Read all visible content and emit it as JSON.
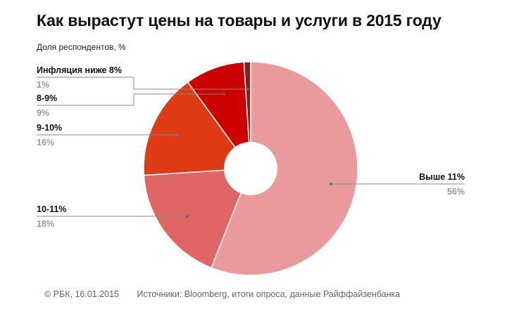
{
  "header": {
    "title": "Как вырастут цены на товары и услуги в 2015 году",
    "subtitle": "Доля респондентов, %"
  },
  "footer": {
    "copyright": "© РБК, 16.01.2015",
    "sources": "Источники: Bloomberg, итоги опроса, данные Райффайзенбанка"
  },
  "chart_data": {
    "type": "pie",
    "title": "Как вырастут цены на товары и услуги в 2015 году",
    "subtitle": "Доля респондентов, %",
    "donut": true,
    "slices": [
      {
        "label": "Выше 11%",
        "value": 56,
        "value_label": "56%",
        "color": "#EA9A9A"
      },
      {
        "label": "10-11%",
        "value": 18,
        "value_label": "18%",
        "color": "#E06666"
      },
      {
        "label": "9-10%",
        "value": 16,
        "value_label": "16%",
        "color": "#E03A14"
      },
      {
        "label": "8-9%",
        "value": 9,
        "value_label": "9%",
        "color": "#CC0000"
      },
      {
        "label": "Инфляция ниже 8%",
        "value": 1,
        "value_label": "1%",
        "color": "#8B1A1A"
      }
    ],
    "label_color": "#111111",
    "value_label_color": "#999999",
    "leader_color": "#888888"
  }
}
